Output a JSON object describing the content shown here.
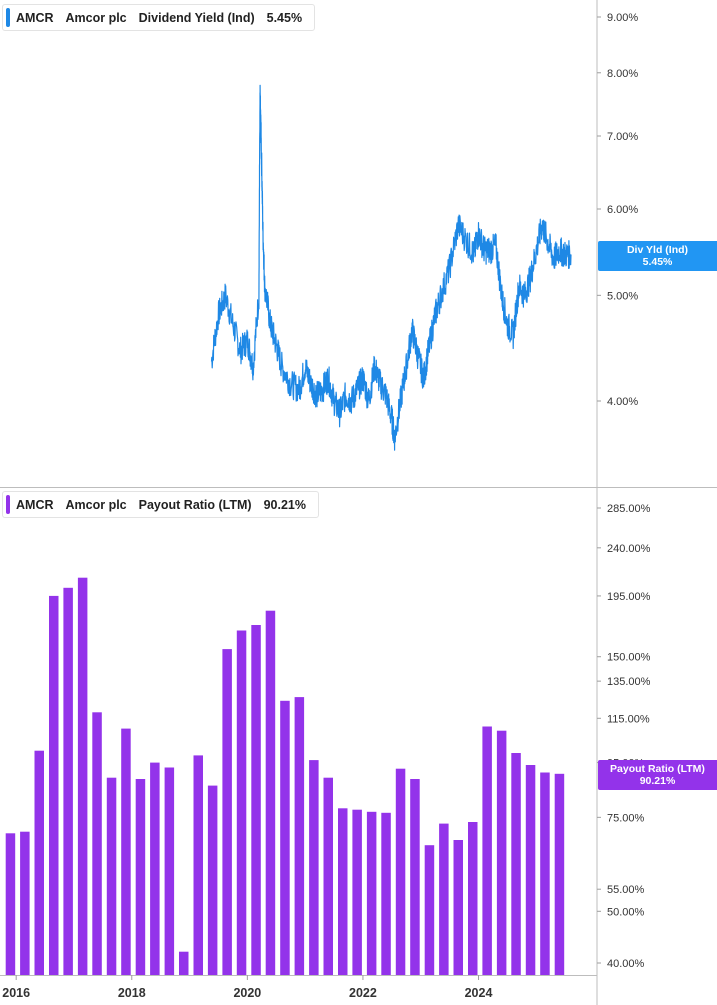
{
  "top_legend": {
    "ticker": "AMCR",
    "company": "Amcor plc",
    "metric": "Dividend Yield (Ind)",
    "value": "5.45%",
    "color": "#1e88e5"
  },
  "top_badge": {
    "label": "Div Yld (Ind)",
    "value": "5.45%",
    "color": "#2196f3"
  },
  "bottom_legend": {
    "ticker": "AMCR",
    "company": "Amcor plc",
    "metric": "Payout Ratio (LTM)",
    "value": "90.21%",
    "color": "#9333ea"
  },
  "bottom_badge": {
    "label": "Payout Ratio (LTM)",
    "value": "90.21%",
    "color": "#9333ea"
  },
  "chart_data": [
    {
      "type": "line",
      "scale": "log",
      "series": [
        {
          "name": "Dividend Yield (Ind)",
          "color": "#1e88e5"
        }
      ],
      "y_ticks": [
        4,
        5,
        6,
        7,
        8,
        9
      ],
      "y_tick_labels": [
        "4.00%",
        "5.00%",
        "6.00%",
        "7.00%",
        "8.00%",
        "9.00%"
      ],
      "x": [
        2019.38,
        2019.5,
        2019.62,
        2019.75,
        2019.88,
        2020.0,
        2020.1,
        2020.2,
        2020.22,
        2020.24,
        2020.27,
        2020.3,
        2020.4,
        2020.5,
        2020.6,
        2020.75,
        2020.9,
        2021.0,
        2021.1,
        2021.2,
        2021.3,
        2021.4,
        2021.5,
        2021.6,
        2021.7,
        2021.8,
        2021.9,
        2022.0,
        2022.1,
        2022.2,
        2022.3,
        2022.4,
        2022.5,
        2022.55,
        2022.65,
        2022.75,
        2022.85,
        2022.95,
        2023.05,
        2023.15,
        2023.25,
        2023.35,
        2023.5,
        2023.65,
        2023.8,
        2023.92,
        2024.0,
        2024.1,
        2024.2,
        2024.3,
        2024.4,
        2024.5,
        2024.6,
        2024.7,
        2024.8,
        2024.9,
        2025.0,
        2025.1,
        2025.2,
        2025.3,
        2025.4,
        2025.5,
        2025.6
      ],
      "y": [
        4.35,
        4.8,
        5.0,
        4.7,
        4.45,
        4.55,
        4.3,
        5.0,
        7.6,
        6.9,
        5.7,
        5.1,
        4.7,
        4.5,
        4.3,
        4.15,
        4.1,
        4.3,
        4.15,
        4.05,
        4.1,
        4.2,
        4.0,
        3.9,
        4.05,
        4.0,
        4.1,
        4.2,
        4.0,
        4.3,
        4.15,
        4.05,
        3.85,
        3.7,
        4.0,
        4.3,
        4.65,
        4.4,
        4.2,
        4.5,
        4.8,
        5.0,
        5.3,
        5.8,
        5.6,
        5.45,
        5.7,
        5.5,
        5.5,
        5.55,
        5.0,
        4.7,
        4.6,
        5.1,
        5.0,
        5.2,
        5.5,
        5.8,
        5.6,
        5.4,
        5.5,
        5.45,
        5.45
      ],
      "ylim": [
        3.5,
        9.5
      ],
      "current": "5.45%"
    },
    {
      "type": "bar",
      "scale": "log",
      "series": [
        {
          "name": "Payout Ratio (LTM)",
          "color": "#9333ea"
        }
      ],
      "x": [
        2015.9,
        2016.15,
        2016.4,
        2016.65,
        2016.9,
        2017.15,
        2017.4,
        2017.65,
        2017.9,
        2018.15,
        2018.4,
        2018.65,
        2018.9,
        2019.15,
        2019.4,
        2019.65,
        2019.9,
        2020.15,
        2020.4,
        2020.65,
        2020.9,
        2021.15,
        2021.4,
        2021.65,
        2021.9,
        2022.15,
        2022.4,
        2022.65,
        2022.9,
        2023.15,
        2023.4,
        2023.65,
        2023.9,
        2024.15,
        2024.4,
        2024.65,
        2024.9,
        2025.15,
        2025.4,
        2025.65,
        2025.9
      ],
      "values": [
        70.0,
        70.5,
        100.0,
        195.0,
        202.0,
        211.0,
        118.0,
        89.0,
        110.0,
        88.5,
        95.0,
        93.0,
        42.0,
        98.0,
        86.0,
        155.0,
        168.0,
        172.0,
        183.0,
        124.0,
        126.0,
        96.0,
        89.0,
        78.0,
        77.5,
        76.8,
        76.5,
        92.5,
        88.5,
        66.5,
        73.0,
        68.0,
        73.5,
        111.0,
        109.0,
        99.0,
        94.0,
        91.0,
        90.5,
        0,
        0
      ],
      "y_ticks": [
        40,
        50,
        55,
        75,
        95,
        115,
        135,
        150,
        195,
        240,
        285
      ],
      "y_tick_labels": [
        "40.00%",
        "50.00%",
        "55.00%",
        "75.00%",
        "95.00%",
        "115.00%",
        "135.00%",
        "150.00%",
        "195.00%",
        "240.00%",
        "285.00%"
      ],
      "ylim": [
        38,
        300
      ],
      "current": "90.21%"
    }
  ],
  "x_axis": {
    "ticks": [
      2016,
      2018,
      2020,
      2022,
      2024
    ],
    "tick_labels": [
      "2016",
      "2018",
      "2020",
      "2022",
      "2024"
    ],
    "range": [
      2015.72,
      2026.05
    ]
  }
}
